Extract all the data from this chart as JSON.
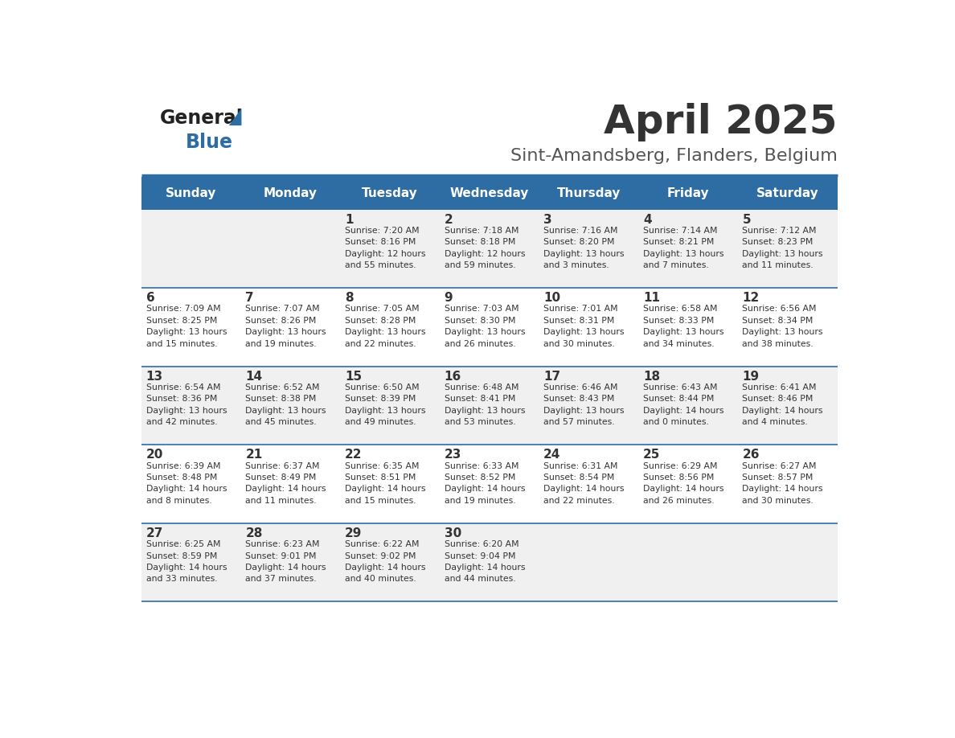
{
  "title": "April 2025",
  "subtitle": "Sint-Amandsberg, Flanders, Belgium",
  "header_bg_color": "#2E6DA4",
  "header_text_color": "#FFFFFF",
  "days_of_week": [
    "Sunday",
    "Monday",
    "Tuesday",
    "Wednesday",
    "Thursday",
    "Friday",
    "Saturday"
  ],
  "row_bg_even": "#F0F0F0",
  "row_bg_odd": "#FFFFFF",
  "cell_text_color": "#333333",
  "divider_color": "#2E6DA4",
  "logo_color": "#2E6DA4",
  "weeks": [
    [
      {
        "day": null,
        "info": null
      },
      {
        "day": null,
        "info": null
      },
      {
        "day": 1,
        "info": "Sunrise: 7:20 AM\nSunset: 8:16 PM\nDaylight: 12 hours\nand 55 minutes."
      },
      {
        "day": 2,
        "info": "Sunrise: 7:18 AM\nSunset: 8:18 PM\nDaylight: 12 hours\nand 59 minutes."
      },
      {
        "day": 3,
        "info": "Sunrise: 7:16 AM\nSunset: 8:20 PM\nDaylight: 13 hours\nand 3 minutes."
      },
      {
        "day": 4,
        "info": "Sunrise: 7:14 AM\nSunset: 8:21 PM\nDaylight: 13 hours\nand 7 minutes."
      },
      {
        "day": 5,
        "info": "Sunrise: 7:12 AM\nSunset: 8:23 PM\nDaylight: 13 hours\nand 11 minutes."
      }
    ],
    [
      {
        "day": 6,
        "info": "Sunrise: 7:09 AM\nSunset: 8:25 PM\nDaylight: 13 hours\nand 15 minutes."
      },
      {
        "day": 7,
        "info": "Sunrise: 7:07 AM\nSunset: 8:26 PM\nDaylight: 13 hours\nand 19 minutes."
      },
      {
        "day": 8,
        "info": "Sunrise: 7:05 AM\nSunset: 8:28 PM\nDaylight: 13 hours\nand 22 minutes."
      },
      {
        "day": 9,
        "info": "Sunrise: 7:03 AM\nSunset: 8:30 PM\nDaylight: 13 hours\nand 26 minutes."
      },
      {
        "day": 10,
        "info": "Sunrise: 7:01 AM\nSunset: 8:31 PM\nDaylight: 13 hours\nand 30 minutes."
      },
      {
        "day": 11,
        "info": "Sunrise: 6:58 AM\nSunset: 8:33 PM\nDaylight: 13 hours\nand 34 minutes."
      },
      {
        "day": 12,
        "info": "Sunrise: 6:56 AM\nSunset: 8:34 PM\nDaylight: 13 hours\nand 38 minutes."
      }
    ],
    [
      {
        "day": 13,
        "info": "Sunrise: 6:54 AM\nSunset: 8:36 PM\nDaylight: 13 hours\nand 42 minutes."
      },
      {
        "day": 14,
        "info": "Sunrise: 6:52 AM\nSunset: 8:38 PM\nDaylight: 13 hours\nand 45 minutes."
      },
      {
        "day": 15,
        "info": "Sunrise: 6:50 AM\nSunset: 8:39 PM\nDaylight: 13 hours\nand 49 minutes."
      },
      {
        "day": 16,
        "info": "Sunrise: 6:48 AM\nSunset: 8:41 PM\nDaylight: 13 hours\nand 53 minutes."
      },
      {
        "day": 17,
        "info": "Sunrise: 6:46 AM\nSunset: 8:43 PM\nDaylight: 13 hours\nand 57 minutes."
      },
      {
        "day": 18,
        "info": "Sunrise: 6:43 AM\nSunset: 8:44 PM\nDaylight: 14 hours\nand 0 minutes."
      },
      {
        "day": 19,
        "info": "Sunrise: 6:41 AM\nSunset: 8:46 PM\nDaylight: 14 hours\nand 4 minutes."
      }
    ],
    [
      {
        "day": 20,
        "info": "Sunrise: 6:39 AM\nSunset: 8:48 PM\nDaylight: 14 hours\nand 8 minutes."
      },
      {
        "day": 21,
        "info": "Sunrise: 6:37 AM\nSunset: 8:49 PM\nDaylight: 14 hours\nand 11 minutes."
      },
      {
        "day": 22,
        "info": "Sunrise: 6:35 AM\nSunset: 8:51 PM\nDaylight: 14 hours\nand 15 minutes."
      },
      {
        "day": 23,
        "info": "Sunrise: 6:33 AM\nSunset: 8:52 PM\nDaylight: 14 hours\nand 19 minutes."
      },
      {
        "day": 24,
        "info": "Sunrise: 6:31 AM\nSunset: 8:54 PM\nDaylight: 14 hours\nand 22 minutes."
      },
      {
        "day": 25,
        "info": "Sunrise: 6:29 AM\nSunset: 8:56 PM\nDaylight: 14 hours\nand 26 minutes."
      },
      {
        "day": 26,
        "info": "Sunrise: 6:27 AM\nSunset: 8:57 PM\nDaylight: 14 hours\nand 30 minutes."
      }
    ],
    [
      {
        "day": 27,
        "info": "Sunrise: 6:25 AM\nSunset: 8:59 PM\nDaylight: 14 hours\nand 33 minutes."
      },
      {
        "day": 28,
        "info": "Sunrise: 6:23 AM\nSunset: 9:01 PM\nDaylight: 14 hours\nand 37 minutes."
      },
      {
        "day": 29,
        "info": "Sunrise: 6:22 AM\nSunset: 9:02 PM\nDaylight: 14 hours\nand 40 minutes."
      },
      {
        "day": 30,
        "info": "Sunrise: 6:20 AM\nSunset: 9:04 PM\nDaylight: 14 hours\nand 44 minutes."
      },
      {
        "day": null,
        "info": null
      },
      {
        "day": null,
        "info": null
      },
      {
        "day": null,
        "info": null
      }
    ]
  ]
}
